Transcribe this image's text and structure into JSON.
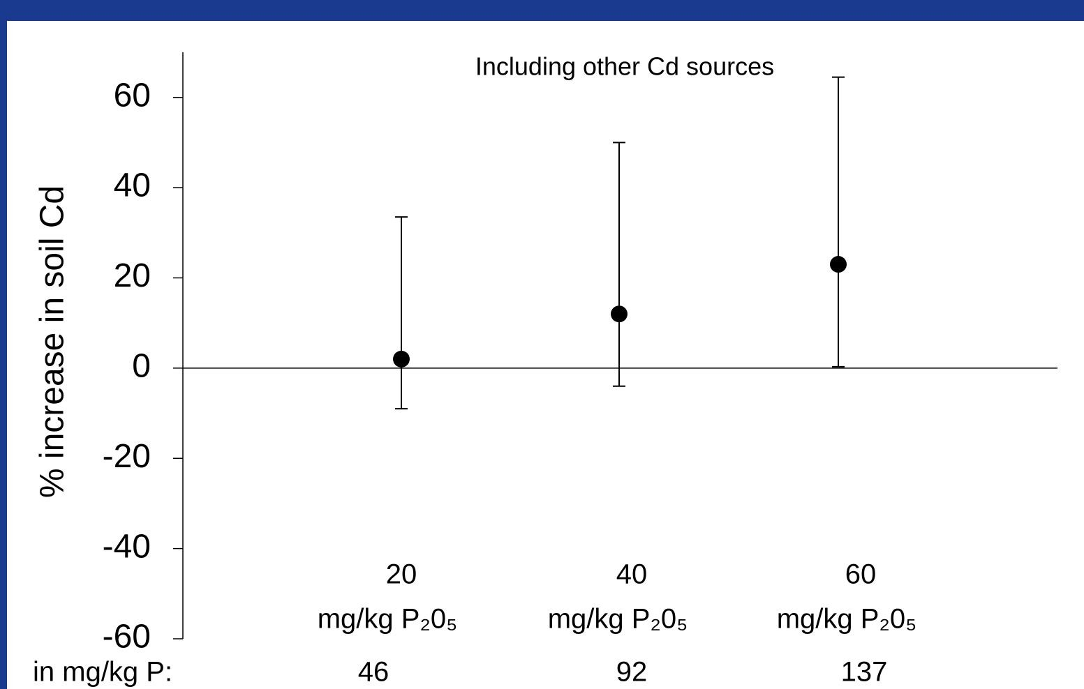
{
  "chart_data": {
    "type": "scatter",
    "annotation": "Including other Cd sources",
    "y_label": "% increase in soil Cd",
    "categories": [
      "20",
      "40",
      "60"
    ],
    "category_units": [
      "mg/kg P₂0₅",
      "mg/kg P₂0₅",
      "mg/kg P₂0₅"
    ],
    "p_label": "in mg/kg P:",
    "p_values": [
      46,
      92,
      137
    ],
    "values": [
      2,
      12,
      23
    ],
    "error_low": [
      -9,
      -4,
      0.3
    ],
    "error_high": [
      33.5,
      50,
      64.5
    ],
    "color": "#000000",
    "ylim": [
      -60,
      70
    ],
    "yticks": [
      -60,
      -40,
      -20,
      0,
      20,
      40,
      60
    ]
  }
}
